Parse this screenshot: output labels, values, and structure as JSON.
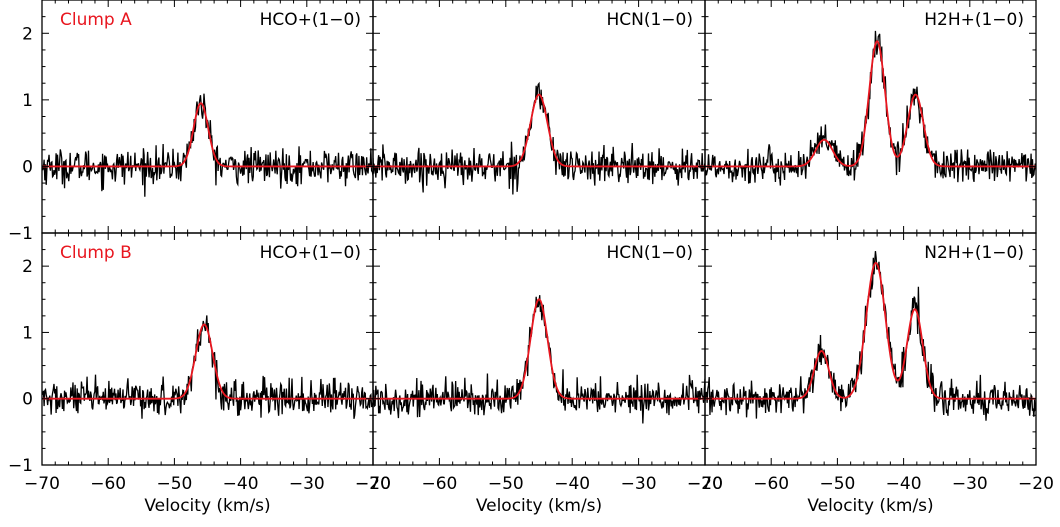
{
  "chart_data": {
    "type": "line",
    "layout": "2x3 grid of spectra",
    "xlabel": "Velocity (km/s)",
    "xlim": [
      -70,
      -20
    ],
    "ylim": [
      -1,
      2.5
    ],
    "x_ticks": [
      -70,
      -60,
      -50,
      -40,
      -30,
      -20
    ],
    "x_tick_labels": [
      "−70",
      "−60",
      "−50",
      "−40",
      "−30",
      "−20"
    ],
    "y_ticks": [
      -1,
      0,
      1,
      2
    ],
    "y_tick_labels": [
      "−1",
      "0",
      "1",
      "2"
    ],
    "series_colors": {
      "observed": "#000000",
      "fit": "#e8161f"
    },
    "panels": [
      {
        "row": 0,
        "col": 0,
        "clump": "Clump A",
        "line": "HCO+(1−0)",
        "noise": 0.13,
        "fit_components": [
          {
            "center": -46.0,
            "peak": 0.95,
            "fwhm": 2.6
          }
        ]
      },
      {
        "row": 0,
        "col": 1,
        "line": "HCN(1−0)",
        "noise": 0.13,
        "fit_components": [
          {
            "center": -45.0,
            "peak": 1.08,
            "fwhm": 3.0
          }
        ]
      },
      {
        "row": 0,
        "col": 2,
        "line": "H2H+(1−0)",
        "noise": 0.13,
        "fit_components": [
          {
            "center": -52.0,
            "peak": 0.4,
            "fwhm": 3.0
          },
          {
            "center": -44.0,
            "peak": 1.88,
            "fwhm": 2.8
          },
          {
            "center": -38.2,
            "peak": 1.08,
            "fwhm": 2.8
          }
        ]
      },
      {
        "row": 1,
        "col": 0,
        "clump": "Clump B",
        "line": "HCO+(1−0)",
        "noise": 0.13,
        "fit_components": [
          {
            "center": -45.5,
            "peak": 1.12,
            "fwhm": 3.0
          }
        ]
      },
      {
        "row": 1,
        "col": 1,
        "line": "HCN(1−0)",
        "noise": 0.13,
        "fit_components": [
          {
            "center": -45.0,
            "peak": 1.5,
            "fwhm": 3.0
          }
        ]
      },
      {
        "row": 1,
        "col": 2,
        "line": "N2H+(1−0)",
        "noise": 0.13,
        "fit_components": [
          {
            "center": -52.4,
            "peak": 0.72,
            "fwhm": 2.6
          },
          {
            "center": -44.2,
            "peak": 2.05,
            "fwhm": 3.4
          },
          {
            "center": -38.3,
            "peak": 1.35,
            "fwhm": 2.8
          }
        ]
      }
    ]
  }
}
